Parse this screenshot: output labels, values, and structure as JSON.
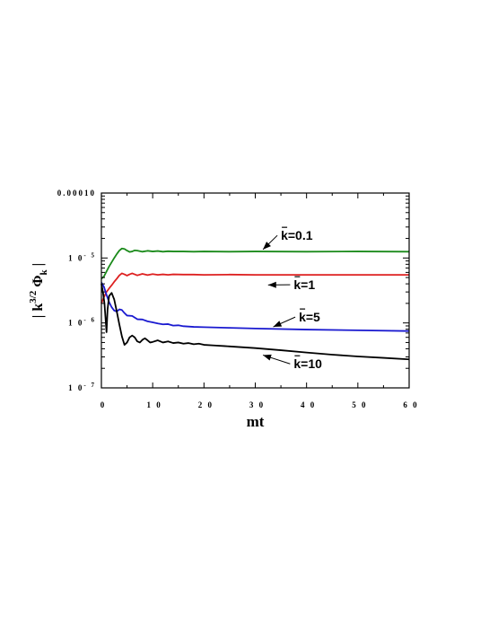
{
  "chart_data": {
    "type": "line",
    "title": "",
    "xlabel": "mt",
    "ylabel": "| k^{3/2} Φ_k |",
    "xlim": [
      0,
      60
    ],
    "ylim": [
      1e-07,
      0.0001
    ],
    "yscale": "log",
    "grid": false,
    "x_ticks": [
      0,
      10,
      20,
      30,
      40,
      50,
      60
    ],
    "x_tick_labels": [
      "0",
      "1 0",
      "2 0",
      "3 0",
      "4 0",
      "5 0",
      "6 0"
    ],
    "y_ticks": [
      1e-07,
      1e-06,
      1e-05,
      0.0001
    ],
    "y_tick_labels": [
      {
        "base": "1 0",
        "exp": "- 7"
      },
      {
        "base": "1 0",
        "exp": "- 6"
      },
      {
        "base": "1 0",
        "exp": "- 5"
      },
      {
        "base": "0.00010",
        "exp": ""
      }
    ],
    "series": [
      {
        "name": "k=0.1",
        "color": "#1a8a1a",
        "x": [
          0,
          0.5,
          1,
          1.5,
          2,
          2.5,
          3,
          3.5,
          4,
          4.5,
          5,
          5.5,
          6,
          6.5,
          7,
          8,
          9,
          10,
          11,
          12,
          13,
          14,
          16,
          18,
          20,
          25,
          30,
          40,
          50,
          60
        ],
        "y": [
          4.8e-06,
          5.2e-06,
          6.2e-06,
          7.4e-06,
          8.6e-06,
          1e-05,
          1.15e-05,
          1.3e-05,
          1.4e-05,
          1.38e-05,
          1.3e-05,
          1.24e-05,
          1.26e-05,
          1.31e-05,
          1.3e-05,
          1.25e-05,
          1.29e-05,
          1.26e-05,
          1.28e-05,
          1.25e-05,
          1.27e-05,
          1.26e-05,
          1.26e-05,
          1.25e-05,
          1.26e-05,
          1.25e-05,
          1.26e-05,
          1.25e-05,
          1.26e-05,
          1.25e-05
        ]
      },
      {
        "name": "k=1",
        "color": "#dd2020",
        "x": [
          0,
          0.5,
          1,
          1.5,
          2,
          2.5,
          3,
          3.5,
          4,
          4.5,
          5,
          5.5,
          6,
          7,
          8,
          9,
          10,
          11,
          12,
          13,
          14,
          16,
          18,
          20,
          25,
          30,
          40,
          50,
          60
        ],
        "y": [
          2e-06,
          2.5e-06,
          3e-06,
          3.4e-06,
          3.8e-06,
          4.3e-06,
          4.8e-06,
          5.4e-06,
          5.8e-06,
          5.6e-06,
          5.35e-06,
          5.6e-06,
          5.8e-06,
          5.4e-06,
          5.7e-06,
          5.45e-06,
          5.65e-06,
          5.5e-06,
          5.6e-06,
          5.5e-06,
          5.6e-06,
          5.55e-06,
          5.55e-06,
          5.5e-06,
          5.55e-06,
          5.5e-06,
          5.5e-06,
          5.5e-06,
          5.5e-06
        ]
      },
      {
        "name": "k=5",
        "color": "#1a1ad0",
        "x": [
          0,
          0.5,
          1,
          1.5,
          2,
          2.5,
          3,
          3.5,
          4,
          4.5,
          5,
          6,
          7,
          8,
          9,
          10,
          11,
          12,
          13,
          14,
          15,
          16,
          18,
          20,
          25,
          30,
          40,
          50,
          60
        ],
        "y": [
          4.2e-06,
          3.6e-06,
          2.7e-06,
          2.1e-06,
          1.75e-06,
          1.55e-06,
          1.5e-06,
          1.62e-06,
          1.58e-06,
          1.42e-06,
          1.3e-06,
          1.28e-06,
          1.14e-06,
          1.13e-06,
          1.06e-06,
          1.02e-06,
          9.8e-07,
          9.5e-07,
          9.6e-07,
          9.1e-07,
          9.2e-07,
          8.9e-07,
          8.7e-07,
          8.6e-07,
          8.4e-07,
          8.2e-07,
          7.9e-07,
          7.7e-07,
          7.5e-07
        ]
      },
      {
        "name": "k=10",
        "color": "#000000",
        "x": [
          0,
          0.3,
          0.6,
          0.8,
          1.0,
          1.2,
          1.5,
          2.0,
          2.5,
          3.0,
          3.5,
          4.0,
          4.5,
          5.0,
          5.5,
          6.0,
          6.5,
          7.0,
          7.5,
          8.0,
          8.5,
          9.0,
          9.5,
          10,
          11,
          12,
          13,
          14,
          15,
          16,
          17,
          18,
          19,
          20,
          22,
          24,
          26,
          28,
          30,
          35,
          40,
          45,
          50,
          55,
          60
        ],
        "y": [
          4e-06,
          3e-06,
          2e-06,
          1.2e-06,
          7.2e-07,
          1.6e-06,
          2.6e-06,
          2.9e-06,
          2.3e-06,
          1.5e-06,
          9.5e-07,
          6.2e-07,
          4.6e-07,
          5e-07,
          6e-07,
          6.4e-07,
          6e-07,
          5.2e-07,
          5e-07,
          5.5e-07,
          5.8e-07,
          5.4e-07,
          5e-07,
          5.1e-07,
          5.4e-07,
          5e-07,
          5.2e-07,
          4.9e-07,
          5e-07,
          4.8e-07,
          4.9e-07,
          4.7e-07,
          4.8e-07,
          4.6e-07,
          4.5e-07,
          4.4e-07,
          4.3e-07,
          4.2e-07,
          4.1e-07,
          3.8e-07,
          3.5e-07,
          3.25e-07,
          3.05e-07,
          2.9e-07,
          2.75e-07
        ]
      }
    ],
    "annotations": [
      {
        "text": "k=0.1",
        "series": "k=0.1",
        "text_x": 35,
        "text_y": 1.9e-05,
        "arrow_x": 31.5,
        "arrow_y": 1.35e-05
      },
      {
        "text": "k=1",
        "series": "k=1",
        "text_x": 37.5,
        "text_y": 3.3e-06,
        "arrow_x": 32.5,
        "arrow_y": 3.85e-06
      },
      {
        "text": "k=5",
        "series": "k=5",
        "text_x": 38.5,
        "text_y": 1.05e-06,
        "arrow_x": 33.5,
        "arrow_y": 8.7e-07
      },
      {
        "text": "k=10",
        "series": "k=10",
        "text_x": 37.5,
        "text_y": 2e-07,
        "arrow_x": 31.5,
        "arrow_y": 3.2e-07
      }
    ]
  }
}
